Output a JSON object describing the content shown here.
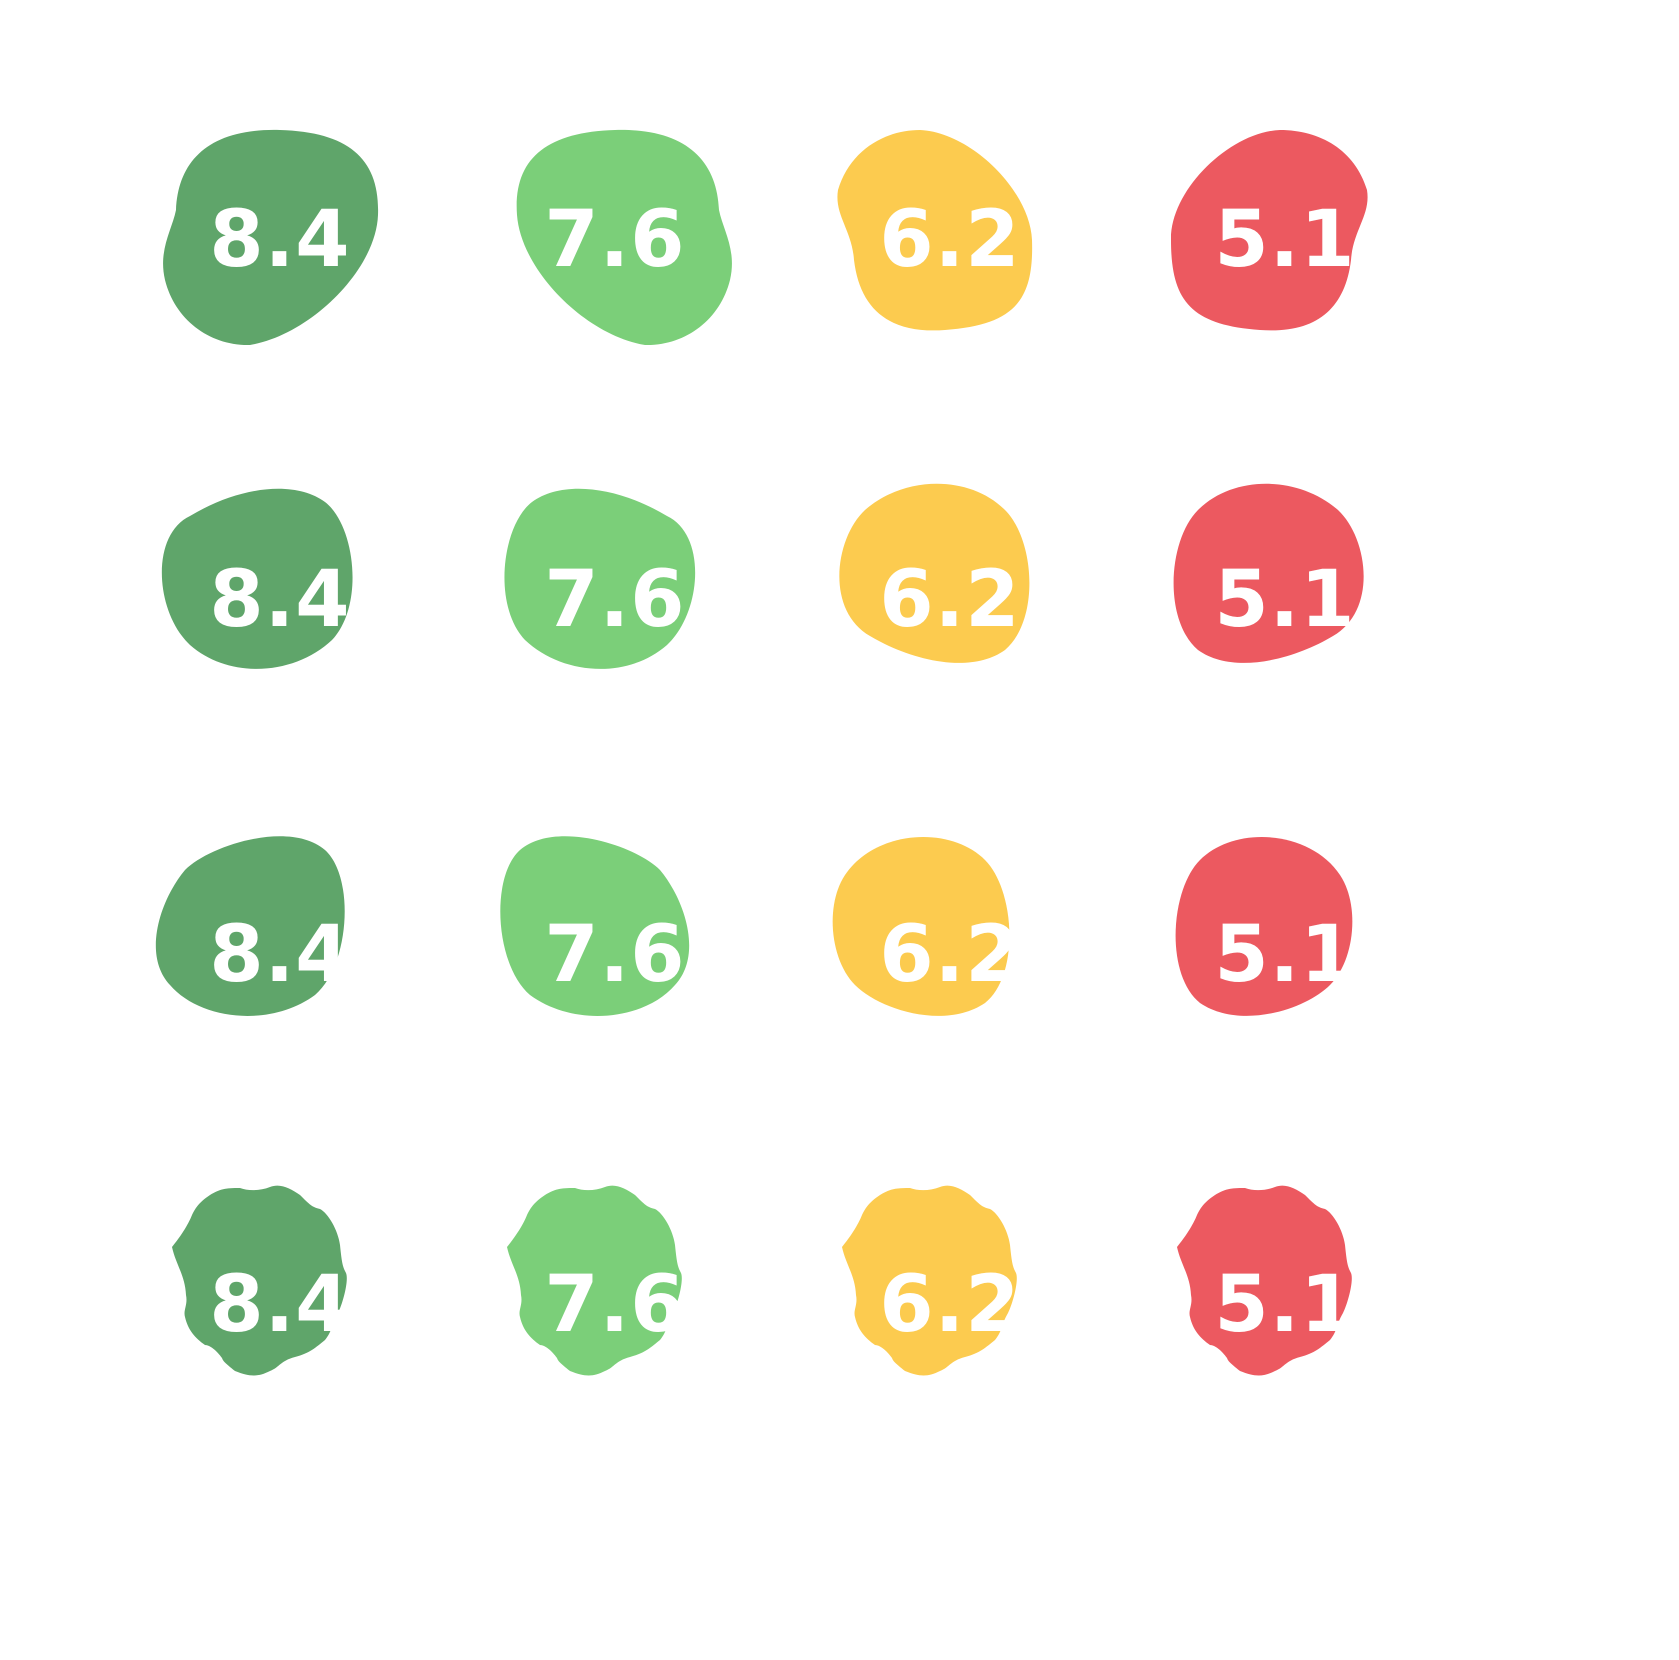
{
  "colors": {
    "dark_green": "#5fa56a",
    "light_green": "#7bcf79",
    "yellow": "#fccb4f",
    "red": "#ec5960",
    "text": "#ffffff"
  },
  "badge_styles": [
    "blob-organic",
    "blob-rounded",
    "blob-tilted",
    "wavy-seal"
  ],
  "rows": [
    {
      "style": "blob-organic",
      "badges": [
        {
          "score": "8.4",
          "color": "dark_green"
        },
        {
          "score": "7.6",
          "color": "light_green"
        },
        {
          "score": "6.2",
          "color": "yellow"
        },
        {
          "score": "5.1",
          "color": "red"
        }
      ]
    },
    {
      "style": "blob-rounded",
      "badges": [
        {
          "score": "8.4",
          "color": "dark_green"
        },
        {
          "score": "7.6",
          "color": "light_green"
        },
        {
          "score": "6.2",
          "color": "yellow"
        },
        {
          "score": "5.1",
          "color": "red"
        }
      ]
    },
    {
      "style": "blob-tilted",
      "badges": [
        {
          "score": "8.4",
          "color": "dark_green"
        },
        {
          "score": "7.6",
          "color": "light_green"
        },
        {
          "score": "6.2",
          "color": "yellow"
        },
        {
          "score": "5.1",
          "color": "red"
        }
      ]
    },
    {
      "style": "wavy-seal",
      "badges": [
        {
          "score": "8.4",
          "color": "dark_green"
        },
        {
          "score": "7.6",
          "color": "light_green"
        },
        {
          "score": "6.2",
          "color": "yellow"
        },
        {
          "score": "5.1",
          "color": "red"
        }
      ]
    }
  ]
}
